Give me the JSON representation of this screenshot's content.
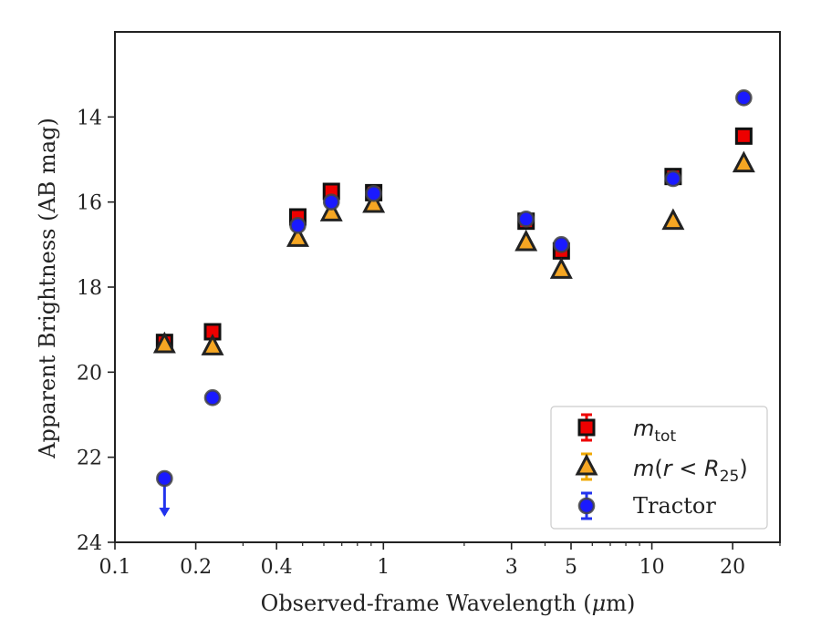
{
  "chart_data": {
    "type": "scatter",
    "xscale": "log",
    "yinverted": true,
    "xlim": [
      0.1,
      30
    ],
    "ylim": [
      24,
      12
    ],
    "xlabel": "Observed-frame Wavelength (μm)",
    "ylabel": "Apparent Brightness (AB mag)",
    "xticks": [
      0.1,
      0.2,
      0.4,
      1,
      3,
      5,
      10,
      20
    ],
    "xtick_labels": [
      "0.1",
      "0.2",
      "0.4",
      "1",
      "3",
      "5",
      "10",
      "20"
    ],
    "yticks": [
      14,
      16,
      18,
      20,
      22,
      24
    ],
    "ytick_labels": [
      "14",
      "16",
      "18",
      "20",
      "22",
      "24"
    ],
    "legend_position": "lower-right",
    "series": [
      {
        "name": "m_tot",
        "legend_text": "mtot",
        "marker": "square",
        "color": "#ee0000",
        "errcolor": "#ee0000",
        "x": [
          0.153,
          0.231,
          0.48,
          0.64,
          0.92,
          3.4,
          4.6,
          12.0,
          22.0
        ],
        "y": [
          19.3,
          19.05,
          16.35,
          15.75,
          15.78,
          16.45,
          17.15,
          15.4,
          14.45
        ]
      },
      {
        "name": "m(r < R_25)",
        "legend_text": "m(r < R25)",
        "marker": "triangle",
        "color": "#f5a623",
        "errcolor": "#f0a800",
        "x": [
          0.153,
          0.231,
          0.48,
          0.64,
          0.92,
          3.4,
          4.6,
          12.0,
          22.0
        ],
        "y": [
          19.35,
          19.4,
          16.85,
          16.25,
          16.05,
          16.95,
          17.6,
          16.45,
          15.1
        ]
      },
      {
        "name": "Tractor",
        "legend_text": "Tractor",
        "marker": "circle",
        "color": "#1a1aff",
        "errcolor": "#2233ee",
        "x": [
          0.153,
          0.231,
          0.48,
          0.64,
          0.92,
          3.4,
          4.6,
          12.0,
          22.0
        ],
        "y": [
          22.5,
          20.6,
          16.55,
          16.0,
          15.8,
          16.4,
          17.0,
          15.45,
          13.55
        ],
        "upper_limits": [
          true,
          false,
          false,
          false,
          false,
          false,
          false,
          false,
          false
        ]
      }
    ]
  }
}
